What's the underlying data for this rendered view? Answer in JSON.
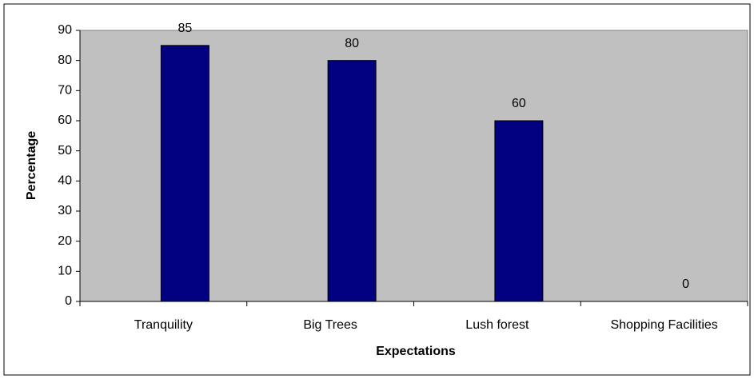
{
  "chart_data": {
    "type": "bar",
    "x_label": "Expectations",
    "y_label": "Percentage",
    "categories": [
      "Tranquility",
      "Big Trees",
      "Lush forest",
      "Shopping Facilities"
    ],
    "values": [
      85,
      80,
      60,
      0
    ],
    "color": "#000080",
    "ylim": [
      0,
      90
    ],
    "yticks": [
      0,
      10,
      20,
      30,
      40,
      50,
      60,
      70,
      80,
      90
    ]
  }
}
